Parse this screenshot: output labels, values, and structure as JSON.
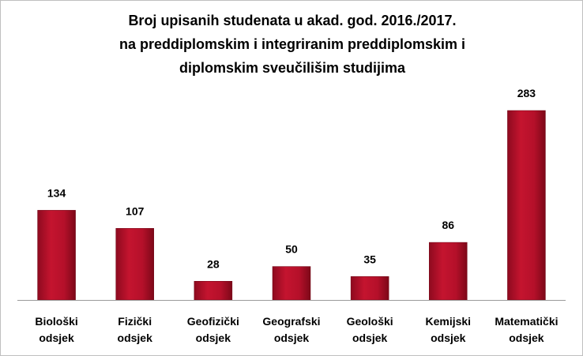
{
  "chart_data": {
    "type": "bar",
    "title_lines": [
      "Broj upisanih studenata u akad. god. 2016./2017.",
      "na preddiplomskim i integriranim preddiplomskim i",
      "diplomskim sveučilišim studijima"
    ],
    "categories": [
      [
        "Biološki",
        "odsjek"
      ],
      [
        "Fizički",
        "odsjek"
      ],
      [
        "Geofizički",
        "odsjek"
      ],
      [
        "Geografski",
        "odsjek"
      ],
      [
        "Geološki",
        "odsjek"
      ],
      [
        "Kemijski",
        "odsjek"
      ],
      [
        "Matematički",
        "odsjek"
      ]
    ],
    "values": [
      134,
      107,
      28,
      50,
      35,
      86,
      283
    ],
    "data_labels": [
      "134",
      "107",
      "28",
      "50",
      "35",
      "86",
      "283"
    ],
    "ylim": [
      0,
      300
    ],
    "grid": false,
    "legend": "none",
    "bar_color": "#b5102a"
  }
}
